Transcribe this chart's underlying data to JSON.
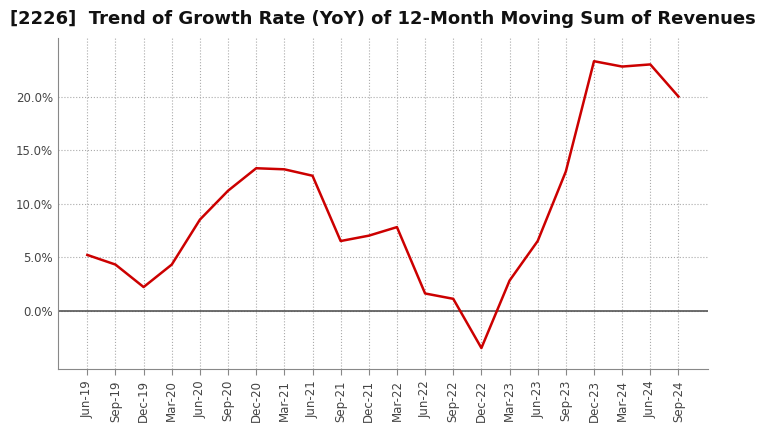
{
  "title": "[2226]  Trend of Growth Rate (YoY) of 12-Month Moving Sum of Revenues",
  "x_labels": [
    "Jun-19",
    "Sep-19",
    "Dec-19",
    "Mar-20",
    "Jun-20",
    "Sep-20",
    "Dec-20",
    "Mar-21",
    "Jun-21",
    "Sep-21",
    "Dec-21",
    "Mar-22",
    "Jun-22",
    "Sep-22",
    "Dec-22",
    "Mar-23",
    "Jun-23",
    "Sep-23",
    "Dec-23",
    "Mar-24",
    "Jun-24",
    "Sep-24"
  ],
  "y_values": [
    5.2,
    4.3,
    2.2,
    4.3,
    8.5,
    11.2,
    13.3,
    13.2,
    12.6,
    6.5,
    7.0,
    7.8,
    1.6,
    1.1,
    -3.5,
    2.8,
    6.5,
    13.0,
    23.3,
    22.8,
    23.0,
    20.0
  ],
  "line_color": "#cc0000",
  "background_color": "#ffffff",
  "plot_bg_color": "#ffffff",
  "grid_color": "#aaaaaa",
  "zero_line_color": "#555555",
  "title_fontsize": 13,
  "tick_fontsize": 8.5,
  "ylim": [
    -5.5,
    25.5
  ],
  "yticks": [
    0.0,
    5.0,
    10.0,
    15.0,
    20.0
  ],
  "ytick_labels": [
    "0.0%",
    "5.0%",
    "10.0%",
    "15.0%",
    "20.0%"
  ]
}
